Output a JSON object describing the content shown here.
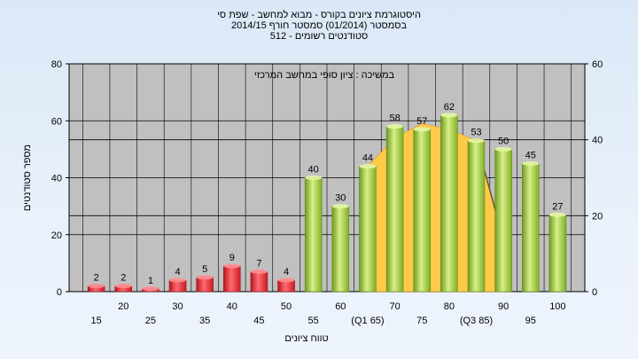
{
  "chart_data": {
    "type": "bar",
    "title_lines": [
      "היסטוגרמת ציונים בקורס - מבוא למחשב - שפת סי",
      "בסמסטר  (01/2014)  סמסטר חורף 2014/15",
      "סטודנטים רשומים - 512"
    ],
    "xlabel": "טווח ציונים",
    "ylabel": "מספר סטודנטים",
    "annotation": "במשיכה : ציון סופי במחשב המרכזי",
    "ylim": [
      0,
      80
    ],
    "yticks": [
      "0",
      "20",
      "40",
      "60",
      "80"
    ],
    "y2lim": [
      0,
      60
    ],
    "y2ticks": [
      "0",
      "20",
      "40",
      "60"
    ],
    "x_tick_labels_top": [
      "20",
      "30",
      "40",
      "50",
      "60",
      "70",
      "80",
      "90",
      "100"
    ],
    "x_tick_labels_bottom": [
      "15",
      "25",
      "35",
      "45",
      "55",
      "(Q1 65)",
      "75",
      "(Q3 85)",
      "95"
    ],
    "categories": [
      "15",
      "20",
      "25",
      "30",
      "35",
      "40",
      "45",
      "50",
      "55",
      "60",
      "65",
      "70",
      "75",
      "80",
      "85",
      "90",
      "95",
      "100"
    ],
    "values": [
      2,
      2,
      1,
      4,
      5,
      9,
      7,
      4,
      40,
      30,
      44,
      58,
      57,
      62,
      53,
      50,
      45,
      27
    ],
    "failing_threshold_index": 8,
    "colors": {
      "fail": "#e0303a",
      "pass": "#9ccc3c",
      "area": "#ffc94a",
      "plot_bg": "#c0c0c0",
      "grid": "#000000"
    },
    "area": {
      "x": [
        "65",
        "70",
        "75",
        "80",
        "85",
        "90"
      ],
      "y": [
        44,
        54,
        59,
        57,
        53,
        20
      ]
    },
    "grid": true
  }
}
